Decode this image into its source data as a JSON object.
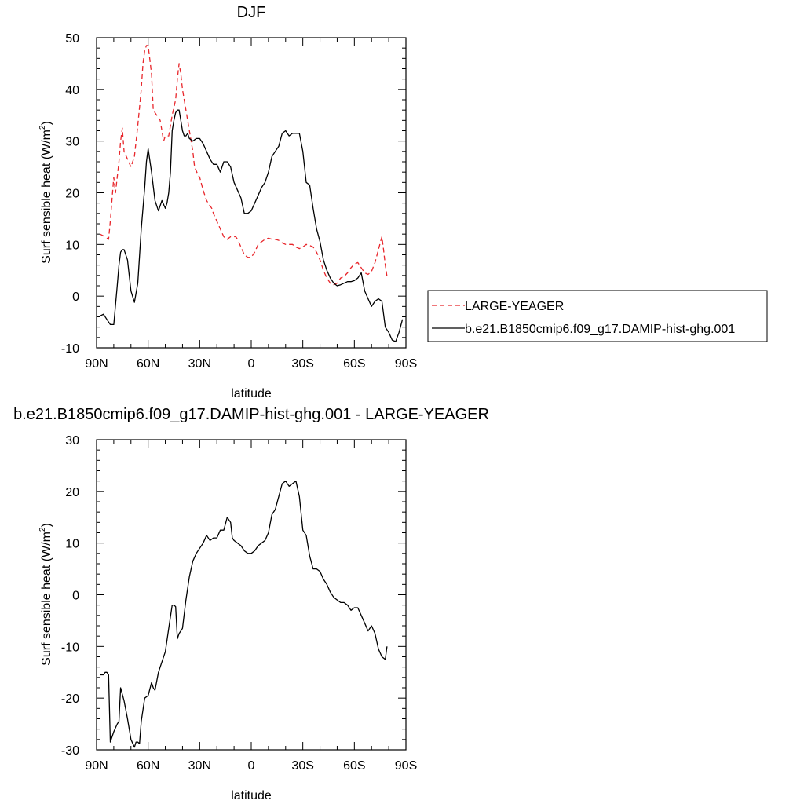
{
  "chart_data": [
    {
      "type": "line",
      "title": "DJF",
      "xlabel": "latitude",
      "ylabel": "Surf sensible heat (W/m",
      "ylabel_sup": "2",
      "ylabel_end": ")",
      "xlim": [
        90,
        -90
      ],
      "ylim": [
        -10,
        50
      ],
      "x_ticks": [
        {
          "value": 90,
          "label": "90N"
        },
        {
          "value": 60,
          "label": "60N"
        },
        {
          "value": 30,
          "label": "30N"
        },
        {
          "value": 0,
          "label": "0"
        },
        {
          "value": -30,
          "label": "30S"
        },
        {
          "value": -60,
          "label": "60S"
        },
        {
          "value": -90,
          "label": "90S"
        }
      ],
      "y_ticks": [
        {
          "value": 50,
          "label": "50"
        },
        {
          "value": 40,
          "label": "40"
        },
        {
          "value": 30,
          "label": "30"
        },
        {
          "value": 20,
          "label": "20"
        },
        {
          "value": 10,
          "label": "10"
        },
        {
          "value": 0,
          "label": "0"
        },
        {
          "value": -10,
          "label": "-10"
        }
      ],
      "legend_position": "right",
      "series": [
        {
          "name": "LARGE-YEAGER",
          "color": "#e8262b",
          "dash": "dashed",
          "x": [
            88,
            85,
            83,
            82,
            80,
            79,
            77,
            76,
            75,
            74,
            72,
            70,
            68,
            66,
            64,
            63,
            62,
            61,
            60,
            58,
            57,
            56,
            55,
            53,
            52,
            51,
            50,
            48,
            46,
            44,
            43,
            42,
            41,
            40,
            39,
            38,
            36,
            34,
            33,
            31,
            30,
            28,
            26,
            24,
            23,
            22,
            20,
            18,
            16,
            14,
            12,
            10,
            9,
            8,
            6,
            4,
            2,
            0,
            -2,
            -4,
            -6,
            -8,
            -10,
            -12,
            -14,
            -16,
            -18,
            -20,
            -22,
            -24,
            -26,
            -28,
            -30,
            -32,
            -34,
            -36,
            -38,
            -40,
            -42,
            -44,
            -46,
            -48,
            -50,
            -52,
            -54,
            -56,
            -58,
            -60,
            -62,
            -64,
            -66,
            -68,
            -70,
            -72,
            -74,
            -76,
            -77,
            -78,
            -79
          ],
          "y": [
            12,
            11.5,
            11,
            14.5,
            23,
            20,
            26,
            30,
            32.5,
            28,
            26.5,
            25,
            27,
            33,
            40,
            45,
            47.5,
            48.5,
            48.5,
            43,
            36,
            35.5,
            35,
            34,
            32,
            30,
            31,
            31,
            35,
            38,
            42,
            45,
            43,
            40,
            38,
            36,
            32,
            28,
            25,
            23.5,
            23,
            20.5,
            18.5,
            17.5,
            17,
            16,
            14.5,
            13,
            11.5,
            11,
            11.5,
            11.5,
            11.5,
            11,
            9.5,
            8,
            7.5,
            7.5,
            8.5,
            10,
            10.5,
            11,
            11.2,
            11,
            11,
            10.8,
            10.3,
            10,
            10,
            10,
            9.5,
            9.2,
            9.5,
            10,
            9.8,
            9.5,
            8.5,
            7,
            5,
            3.5,
            2.5,
            2.2,
            2.5,
            3.5,
            3.8,
            4.5,
            5.5,
            6.2,
            6.5,
            5.5,
            4.5,
            4.2,
            4.8,
            6.5,
            9,
            11.5,
            9,
            6,
            3.8
          ]
        },
        {
          "name": "b.e21.B1850cmip6.f09_g17.DAMIP-hist-ghg.001",
          "color": "#000000",
          "dash": "solid",
          "x": [
            89,
            86,
            84,
            82,
            80,
            78,
            77,
            76,
            75,
            74,
            72,
            71,
            70,
            68,
            66,
            64,
            63,
            62,
            61,
            60,
            58,
            56,
            54,
            52,
            50,
            49,
            48,
            47,
            46,
            45,
            44,
            43,
            42,
            41,
            40,
            39,
            38,
            37,
            36,
            34,
            32,
            30,
            28,
            26,
            24,
            22,
            20,
            18,
            16,
            14,
            12,
            10,
            8,
            6,
            4,
            2,
            0,
            -2,
            -4,
            -6,
            -8,
            -10,
            -12,
            -14,
            -16,
            -18,
            -20,
            -22,
            -24,
            -26,
            -28,
            -30,
            -32,
            -34,
            -36,
            -38,
            -40,
            -42,
            -44,
            -46,
            -48,
            -50,
            -52,
            -54,
            -56,
            -58,
            -60,
            -62,
            -64,
            -66,
            -68,
            -70,
            -72,
            -74,
            -76,
            -78,
            -80,
            -82,
            -84,
            -86,
            -88
          ],
          "y": [
            -4,
            -3.5,
            -4.5,
            -5.5,
            -5.5,
            2,
            6,
            8.5,
            9,
            9,
            7,
            4,
            1,
            -1.2,
            2.5,
            13,
            17,
            21,
            26,
            28.5,
            24,
            18.5,
            16.5,
            18.5,
            17,
            18,
            20,
            24,
            32,
            34,
            35.5,
            36,
            36,
            34,
            32,
            31,
            31,
            31.5,
            30.5,
            30,
            30.5,
            30.5,
            29.5,
            28,
            26.5,
            25.5,
            25.5,
            24,
            26,
            26,
            25,
            22,
            20.5,
            19,
            16,
            16,
            16.5,
            18,
            19.5,
            21,
            22,
            24,
            27,
            28,
            29,
            31.5,
            32,
            31,
            31.5,
            31.5,
            31.5,
            28,
            22,
            21.5,
            17,
            13,
            10.5,
            7,
            5,
            3.5,
            2.5,
            2,
            2.2,
            2.5,
            2.8,
            2.8,
            3,
            3.5,
            4.5,
            1,
            -0.5,
            -2,
            -1,
            -0.5,
            -1,
            -6,
            -7,
            -8.5,
            -8.8,
            -7,
            -4.5
          ]
        }
      ]
    },
    {
      "type": "line",
      "title": "b.e21.B1850cmip6.f09_g17.DAMIP-hist-ghg.001 - LARGE-YEAGER",
      "xlabel": "latitude",
      "ylabel": "Surf sensible heat (W/m",
      "ylabel_sup": "2",
      "ylabel_end": ")",
      "xlim": [
        90,
        -90
      ],
      "ylim": [
        -30,
        30
      ],
      "x_ticks": [
        {
          "value": 90,
          "label": "90N"
        },
        {
          "value": 60,
          "label": "60N"
        },
        {
          "value": 30,
          "label": "30N"
        },
        {
          "value": 0,
          "label": "0"
        },
        {
          "value": -30,
          "label": "30S"
        },
        {
          "value": -60,
          "label": "60S"
        },
        {
          "value": -90,
          "label": "90S"
        }
      ],
      "y_ticks": [
        {
          "value": 30,
          "label": "30"
        },
        {
          "value": 20,
          "label": "20"
        },
        {
          "value": 10,
          "label": "10"
        },
        {
          "value": 0,
          "label": "0"
        },
        {
          "value": -10,
          "label": "-10"
        },
        {
          "value": -20,
          "label": "-20"
        },
        {
          "value": -30,
          "label": "-30"
        }
      ],
      "series": [
        {
          "color": "#000000",
          "dash": "solid",
          "x": [
            88,
            86,
            85,
            84,
            83,
            82,
            80,
            78,
            77,
            76,
            74,
            72,
            70,
            68,
            67,
            66,
            65,
            64,
            62,
            60,
            58,
            57,
            56,
            54,
            52,
            50,
            48,
            46,
            45,
            44,
            43,
            42,
            41,
            40,
            38,
            36,
            34,
            32,
            30,
            28,
            26,
            24,
            22,
            20,
            18,
            16,
            14,
            12,
            11,
            10,
            8,
            6,
            4,
            2,
            0,
            -2,
            -4,
            -6,
            -8,
            -10,
            -12,
            -14,
            -16,
            -18,
            -20,
            -22,
            -24,
            -26,
            -28,
            -30,
            -32,
            -34,
            -36,
            -38,
            -40,
            -42,
            -44,
            -46,
            -48,
            -50,
            -52,
            -54,
            -56,
            -58,
            -60,
            -62,
            -64,
            -66,
            -68,
            -70,
            -72,
            -74,
            -76,
            -78,
            -79
          ],
          "y": [
            -15.5,
            -15.5,
            -15,
            -15,
            -15.5,
            -28.5,
            -26.5,
            -25,
            -24.5,
            -18,
            -20.5,
            -24,
            -28,
            -29.5,
            -28.5,
            -28.5,
            -28.8,
            -24.5,
            -20,
            -19.5,
            -17,
            -18,
            -18.5,
            -15,
            -13,
            -11,
            -6.5,
            -2,
            -2,
            -2.3,
            -8.5,
            -7.5,
            -7,
            -6.5,
            -1,
            3.5,
            6.5,
            8,
            9,
            10,
            11.5,
            10.5,
            11,
            11,
            12.5,
            12.5,
            15,
            14,
            11,
            10.5,
            10,
            9.5,
            8.5,
            8,
            8,
            8.5,
            9.5,
            10,
            10.5,
            12,
            15.5,
            16.5,
            19,
            21.5,
            22,
            21,
            21.5,
            22,
            19,
            12.5,
            11.5,
            7.5,
            5,
            5,
            4.5,
            3,
            2,
            0.5,
            -0.5,
            -1,
            -1.5,
            -1.5,
            -2,
            -3,
            -2.5,
            -2.5,
            -4,
            -5.5,
            -7,
            -6,
            -7.5,
            -10.5,
            -12,
            -12.5,
            -10
          ]
        }
      ]
    }
  ]
}
